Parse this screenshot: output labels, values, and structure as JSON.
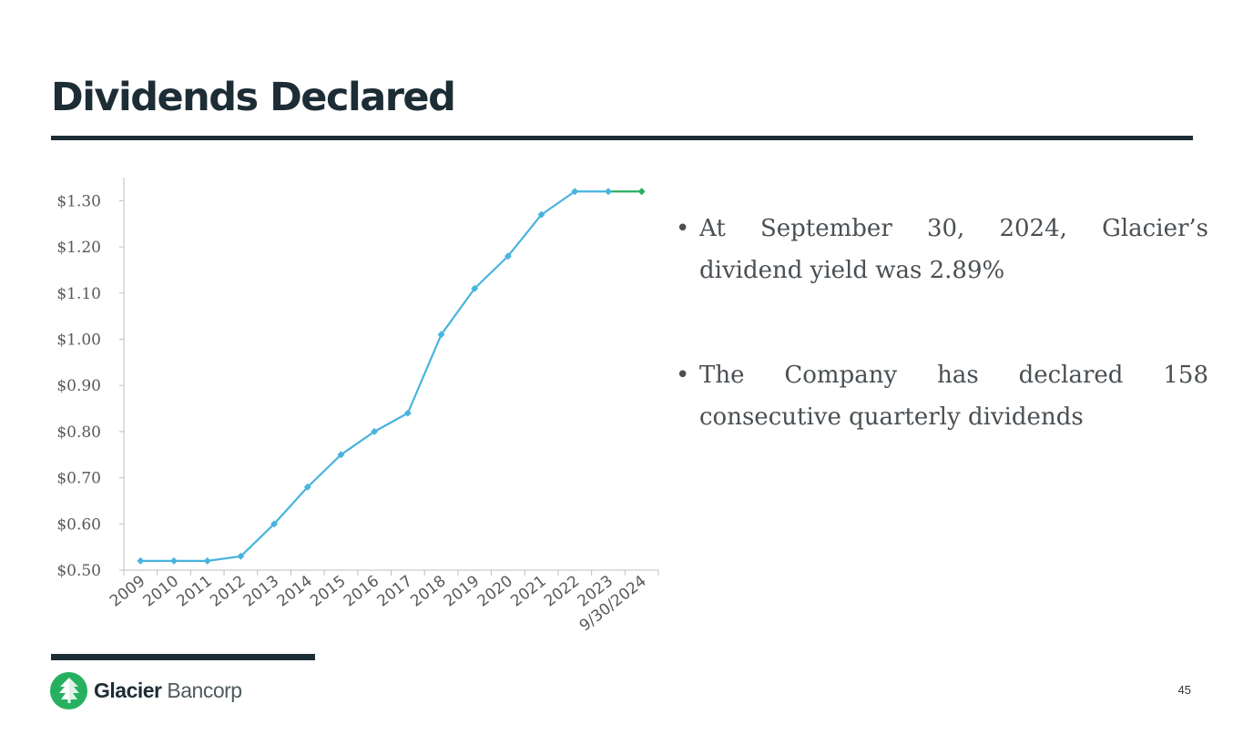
{
  "slide": {
    "title": "Dividends Declared",
    "page_number": "45"
  },
  "bullets": [
    {
      "marker": "•",
      "text": "At September 30, 2024, Glacier’s dividend yield was 2.89%"
    },
    {
      "marker": "•",
      "text": "The Company has declared 158 consecutive quarterly dividends"
    }
  ],
  "logo": {
    "name_strong": "Glacier",
    "name_light": " Bancorp",
    "icon": "glacier-tree-icon"
  },
  "colors": {
    "title": "#1d2d35",
    "line": "#47b4de",
    "last_segment": "#27b060",
    "axis_text": "#595959",
    "axis": "#bfbfbf"
  },
  "chart_data": {
    "type": "line",
    "categories": [
      "2009",
      "2010",
      "2011",
      "2012",
      "2013",
      "2014",
      "2015",
      "2016",
      "2017",
      "2018",
      "2019",
      "2020",
      "2021",
      "2022",
      "2023",
      "9/30/2024"
    ],
    "series": [
      {
        "values": [
          0.52,
          0.52,
          0.52,
          0.53,
          0.6,
          0.68,
          0.75,
          0.8,
          0.84,
          1.01,
          1.11,
          1.18,
          1.27,
          1.32,
          1.32,
          1.32
        ]
      }
    ],
    "yticks": [
      "$0.50",
      "$0.60",
      "$0.70",
      "$0.80",
      "$0.90",
      "$1.00",
      "$1.10",
      "$1.20",
      "$1.30"
    ],
    "ylim": [
      0.5,
      1.35
    ],
    "grid": false,
    "legend": "none"
  }
}
